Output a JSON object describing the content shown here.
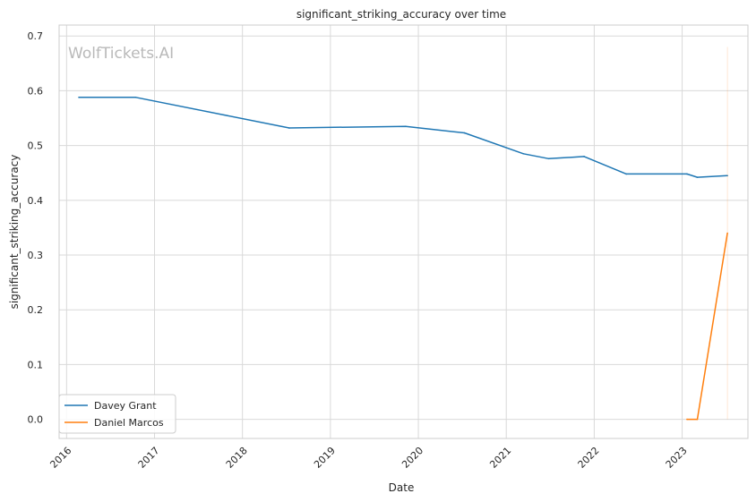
{
  "chart_data": {
    "type": "line",
    "title": "significant_striking_accuracy over time",
    "xlabel": "Date",
    "ylabel": "significant_striking_accuracy",
    "watermark": "WolfTickets.AI",
    "x_ticks": [
      "2016",
      "2017",
      "2018",
      "2019",
      "2020",
      "2021",
      "2022",
      "2023"
    ],
    "y_ticks": [
      "0.0",
      "0.1",
      "0.2",
      "0.3",
      "0.4",
      "0.5",
      "0.6",
      "0.7"
    ],
    "xlim": [
      "2015-12-01",
      "2023-10-01"
    ],
    "ylim": [
      -0.035,
      0.72
    ],
    "grid": true,
    "legend_position": "lower-left",
    "series": [
      {
        "name": "Davey Grant",
        "color": "#1f77b4",
        "points": [
          {
            "x": "2016-02-21",
            "y": 0.588
          },
          {
            "x": "2016-10-15",
            "y": 0.588
          },
          {
            "x": "2018-07-14",
            "y": 0.532
          },
          {
            "x": "2019-11-09",
            "y": 0.535
          },
          {
            "x": "2020-07-11",
            "y": 0.523
          },
          {
            "x": "2021-03-13",
            "y": 0.485
          },
          {
            "x": "2021-06-26",
            "y": 0.476
          },
          {
            "x": "2021-11-20",
            "y": 0.48
          },
          {
            "x": "2022-05-14",
            "y": 0.448
          },
          {
            "x": "2023-01-21",
            "y": 0.448
          },
          {
            "x": "2023-03-05",
            "y": 0.442
          },
          {
            "x": "2023-07-08",
            "y": 0.445
          }
        ]
      },
      {
        "name": "Daniel Marcos",
        "color": "#ff7f0e",
        "points": [
          {
            "x": "2023-01-21",
            "y": 0.0
          },
          {
            "x": "2023-03-05",
            "y": 0.0
          },
          {
            "x": "2023-07-08",
            "y": 0.34
          }
        ]
      }
    ]
  }
}
